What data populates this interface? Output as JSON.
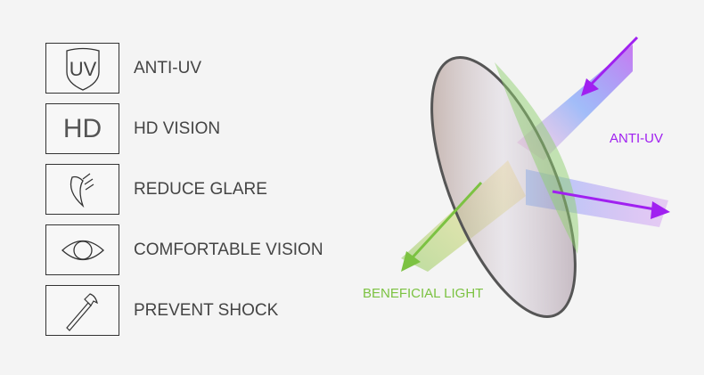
{
  "features": [
    {
      "icon": "uv-shield-icon",
      "icon_text": "UV",
      "label": "ANTI-UV"
    },
    {
      "icon": "hd-icon",
      "icon_text": "HD",
      "label": "HD VISION"
    },
    {
      "icon": "reduce-glare-icon",
      "label": "REDUCE GLARE"
    },
    {
      "icon": "eye-icon",
      "label": "COMFORTABLE VISION"
    },
    {
      "icon": "hammer-icon",
      "label": "PREVENT SHOCK"
    }
  ],
  "diagram": {
    "uv_label": "ANTI-UV",
    "light_label": "BENEFICIAL LIGHT",
    "uv_color": "#a020f0",
    "light_color": "#7cc242"
  }
}
